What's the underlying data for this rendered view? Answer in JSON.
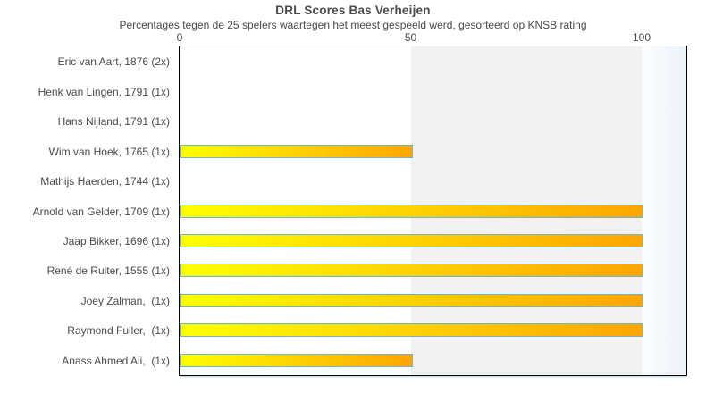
{
  "chart": {
    "title": "DRL Scores Bas Verheijen",
    "subtitle": "Percentages tegen de 25 spelers waartegen het meest gespeeld werd, gesorteerd op KNSB rating"
  },
  "chart_data": {
    "type": "bar",
    "orientation": "horizontal",
    "title": "DRL Scores Bas Verheijen",
    "subtitle": "Percentages tegen de 25 spelers waartegen het meest gespeeld werd, gesorteerd op KNSB rating",
    "categories": [
      "Eric van Aart, 1876 (2x)",
      "Henk van Lingen, 1791 (1x)",
      "Hans Nijland, 1791 (1x)",
      "Wim van Hoek, 1765 (1x)",
      "Mathijs Haerden, 1744 (1x)",
      "Arnold van Gelder, 1709 (1x)",
      "Jaap Bikker, 1696 (1x)",
      "René de Ruiter, 1555 (1x)",
      "Joey Zalman,  (1x)",
      "Raymond Fuller,  (1x)",
      "Anass Ahmed Ali,  (1x)"
    ],
    "values": [
      0,
      0,
      0,
      50,
      0,
      100,
      100,
      100,
      100,
      100,
      50
    ],
    "xlabel": "",
    "ylabel": "",
    "xticks": [
      0,
      50,
      100
    ],
    "xlim": [
      0,
      110
    ],
    "grid": false,
    "legend": false,
    "colors": {
      "bar_gradient_start": "#ffff00",
      "bar_gradient_end": "#ffa500",
      "bar_border": "#6db3e2",
      "band_gray": "#f2f2f2",
      "band_right_tint": "#edf3fa",
      "plot_border": "#000000",
      "text": "#4a4a4a"
    }
  }
}
